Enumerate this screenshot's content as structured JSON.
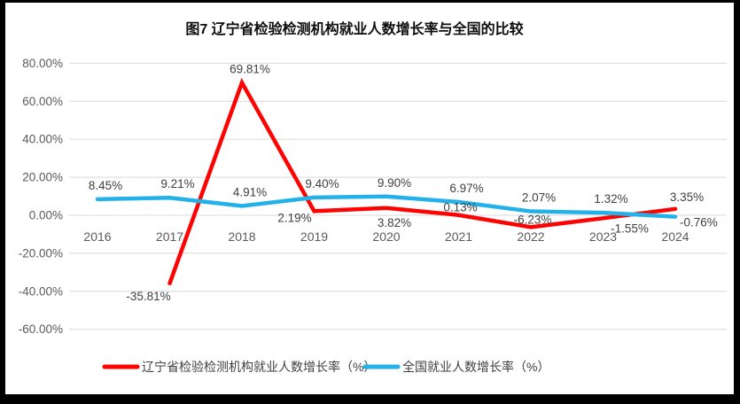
{
  "figure": {
    "title": "图7 辽宁省检验检测机构就业人数增长率与全国的比较"
  },
  "chart_data": {
    "type": "line",
    "title": "图7 辽宁省检验检测机构就业人数增长率与全国的比较",
    "categories": [
      "2016",
      "2017",
      "2018",
      "2019",
      "2020",
      "2021",
      "2022",
      "2023",
      "2024"
    ],
    "series": [
      {
        "name": "辽宁省检验检测机构就业人数增长率（%）",
        "color": "#FE0202",
        "values": [
          null,
          -35.81,
          69.81,
          2.19,
          3.82,
          0.13,
          -6.23,
          -1.55,
          3.35
        ],
        "label_pos": [
          null,
          "below-left",
          "above",
          "left-below",
          "below",
          "above-close",
          "above-close",
          "below-right",
          "above-right"
        ]
      },
      {
        "name": "全国就业人数增长率（%）",
        "color": "#22B1E8",
        "values": [
          8.45,
          9.21,
          4.91,
          9.4,
          9.9,
          6.97,
          2.07,
          1.32,
          -0.76
        ],
        "label_pos": [
          "above",
          "above",
          "above",
          "above",
          "above",
          "above",
          "above",
          "above",
          "right-below"
        ]
      }
    ],
    "ylim": [
      -60,
      80
    ],
    "ytick_step": 20,
    "ytick_format": "0.00%",
    "value_label_format": "0.00%",
    "grid": true,
    "legend_position": "bottom"
  }
}
